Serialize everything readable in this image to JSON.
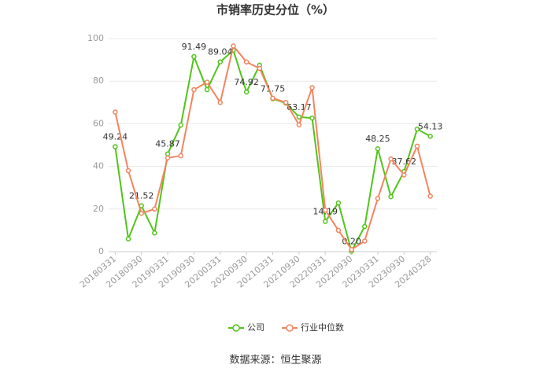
{
  "chart_data": {
    "type": "line",
    "title": "市销率历史分位（%）",
    "categories": [
      "20180331",
      null,
      "20180930",
      null,
      "20190331",
      null,
      "20190930",
      null,
      "20200331",
      null,
      "20200930",
      null,
      "20210331",
      null,
      "20210930",
      null,
      "20220331",
      null,
      "20220930",
      null,
      "20230331",
      null,
      "20230930",
      null,
      "20240328"
    ],
    "series": [
      {
        "name": "公司",
        "color": "#52c41a",
        "values": [
          49.24,
          6,
          21.52,
          8.8,
          45.87,
          59.4,
          91.49,
          76,
          89.04,
          94.5,
          74.92,
          87.5,
          71.75,
          69.7,
          63.17,
          62.7,
          14.19,
          22.9,
          0.2,
          11.8,
          48.25,
          25.8,
          37.62,
          57.5,
          54.13
        ],
        "value_labels": [
          "49.24",
          null,
          "21.52",
          null,
          "45.87",
          null,
          "91.49",
          null,
          "89.04",
          null,
          "74.92",
          null,
          "71.75",
          null,
          "63.17",
          null,
          "14.19",
          null,
          "0.20",
          null,
          "48.25",
          null,
          "37.62",
          null,
          "54.13"
        ]
      },
      {
        "name": "行业中位数",
        "color": "#f4845f",
        "values": [
          65.5,
          38,
          18,
          20,
          44,
          45,
          76,
          79.5,
          70,
          96.5,
          89,
          86,
          72,
          70,
          59.5,
          77,
          19.5,
          10,
          1,
          5,
          25,
          43.5,
          36,
          49.5,
          26
        ]
      }
    ],
    "ylim": [
      0,
      100
    ],
    "yticks": [
      0,
      20,
      40,
      60,
      80,
      100
    ],
    "grid": true,
    "legend": "bottom",
    "source": "数据来源：恒生聚源"
  }
}
